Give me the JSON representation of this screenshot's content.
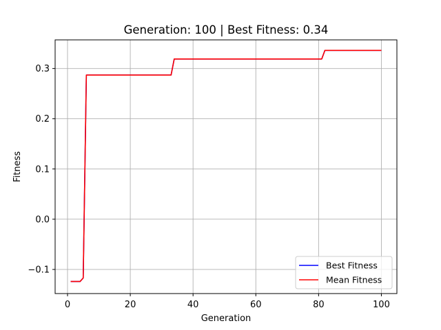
{
  "chart_data": {
    "type": "line",
    "title": "Generation: 100 | Best Fitness: 0.34",
    "xlabel": "Generation",
    "ylabel": "Fitness",
    "xlim": [
      -3.95,
      104.95
    ],
    "ylim": [
      -0.148,
      0.357
    ],
    "xticks": [
      0,
      20,
      40,
      60,
      80,
      100
    ],
    "xtick_labels": [
      "0",
      "20",
      "40",
      "60",
      "80",
      "100"
    ],
    "yticks": [
      -0.1,
      0.0,
      0.1,
      0.2,
      0.3
    ],
    "ytick_labels": [
      "−0.1",
      "0.0",
      "0.1",
      "0.2",
      "0.3"
    ],
    "grid": true,
    "legend_position": "lower-right",
    "series": [
      {
        "name": "Best Fitness",
        "color": "#0000ff",
        "x": [
          1,
          2,
          3,
          4,
          5,
          6,
          33,
          34,
          81,
          82,
          100
        ],
        "y": [
          -0.124,
          -0.124,
          -0.124,
          -0.124,
          -0.117,
          0.287,
          0.287,
          0.319,
          0.319,
          0.336,
          0.336
        ]
      },
      {
        "name": "Mean Fitness",
        "color": "#ff0000",
        "x": [
          1,
          2,
          3,
          4,
          5,
          6,
          33,
          34,
          81,
          82,
          100
        ],
        "y": [
          -0.124,
          -0.124,
          -0.124,
          -0.124,
          -0.117,
          0.287,
          0.287,
          0.319,
          0.319,
          0.336,
          0.336
        ]
      }
    ]
  }
}
